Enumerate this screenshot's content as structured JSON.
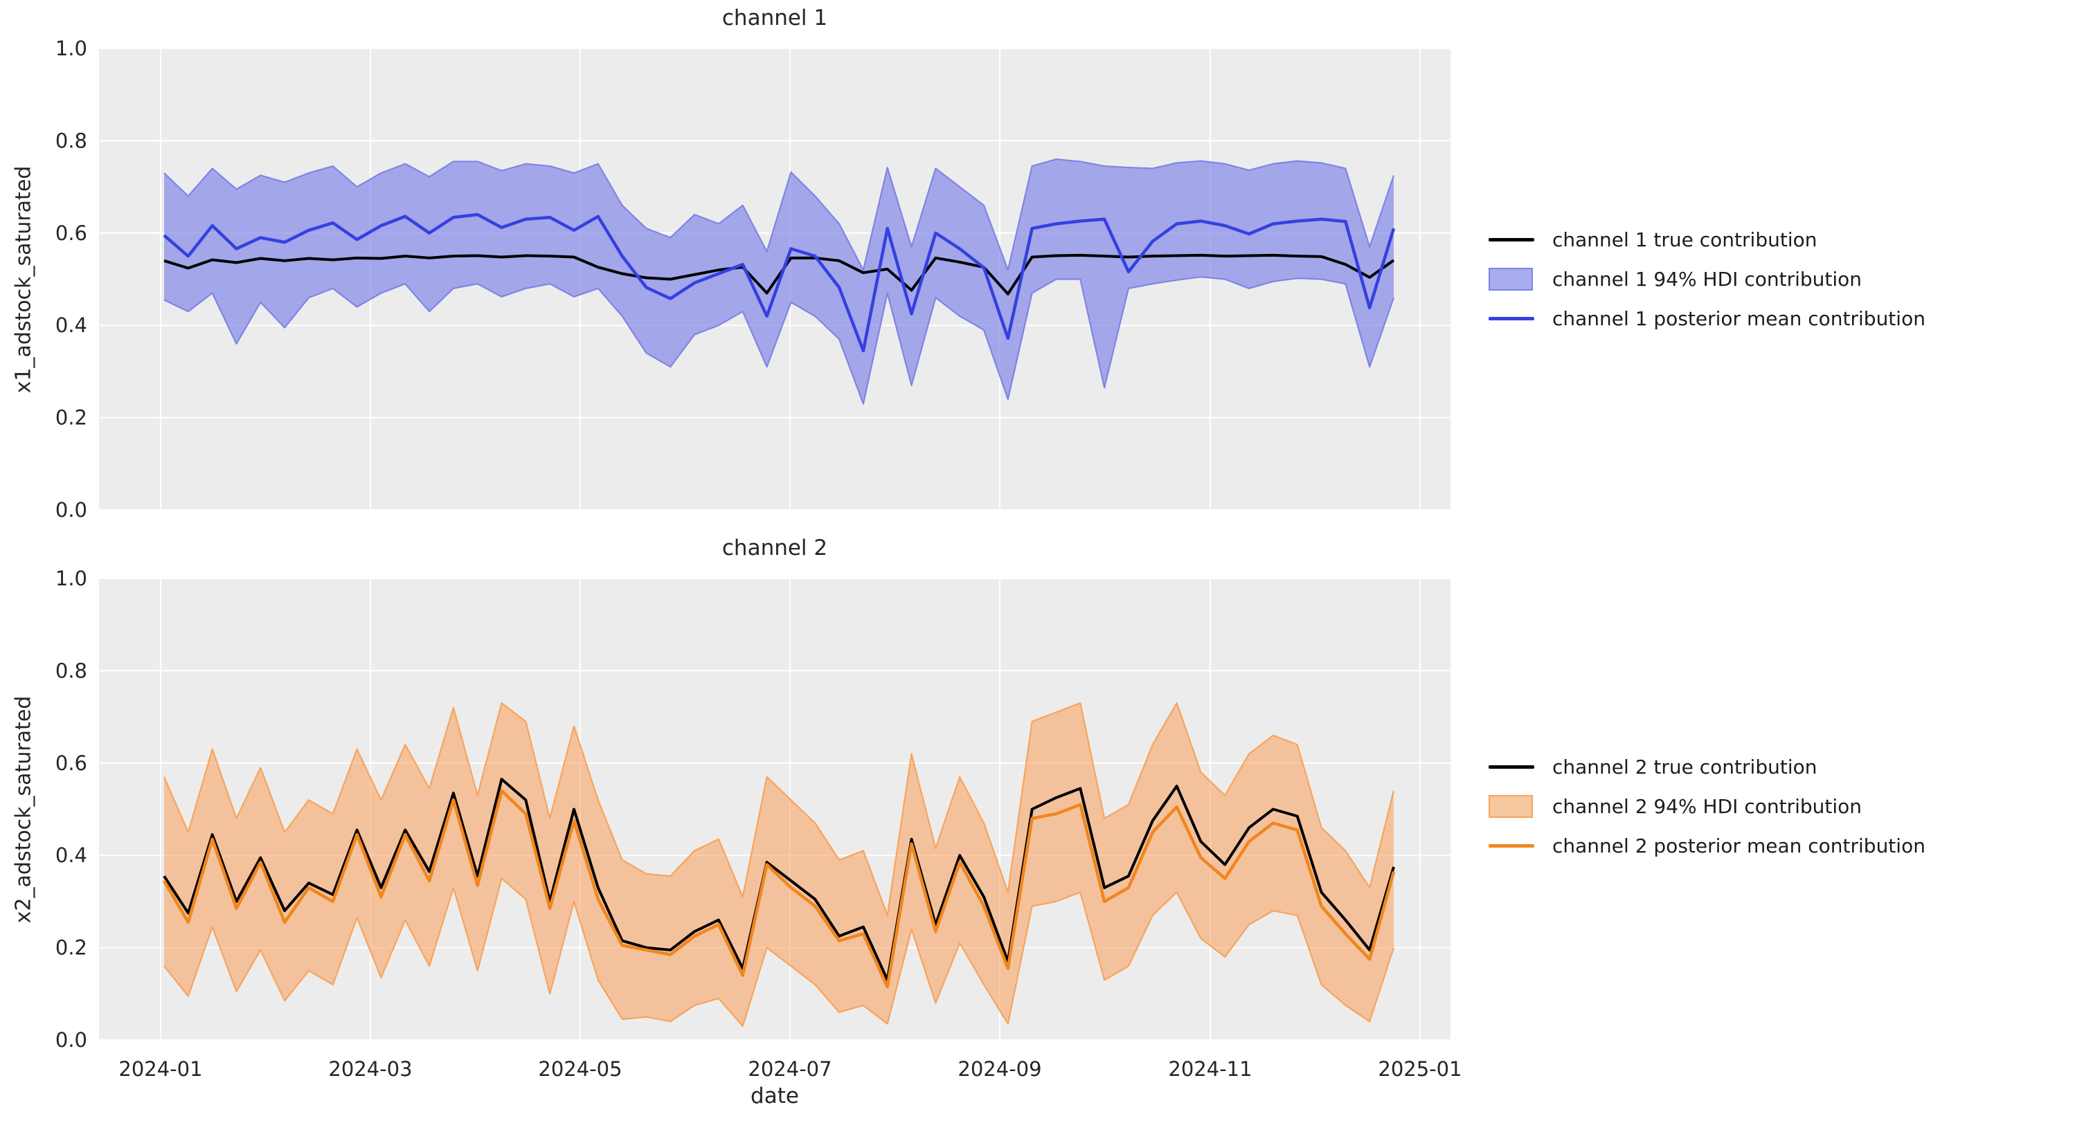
{
  "figure": {
    "background": "#ffffff",
    "axes_background": "#ececec",
    "grid_color": "#ffffff",
    "tick_color": "#262626"
  },
  "chart_data": [
    {
      "type": "line",
      "title": "channel 1",
      "xlabel": "",
      "ylabel": "x1_adstock_saturated",
      "ylim": [
        0.0,
        1.0
      ],
      "grid": true,
      "legend_position": "right-outside",
      "x_start": "2024-01-01",
      "x_step_days": 7,
      "n_points": 52,
      "x_tick_labels": [
        "2024-01",
        "2024-03",
        "2024-05",
        "2024-07",
        "2024-09",
        "2024-11",
        "2025-01"
      ],
      "y_ticks": [
        0.0,
        0.2,
        0.4,
        0.6,
        0.8,
        1.0
      ],
      "y_tick_labels": [
        "0.0",
        "0.2",
        "0.4",
        "0.6",
        "0.8",
        "1.0"
      ],
      "colors": {
        "true_line": "#000000",
        "mean_line": "#3440df",
        "band_fill": "#7c81e6",
        "band_alpha": 0.66,
        "band_edge": "#7f84e6",
        "band_swatch": "#a8abec"
      },
      "series": [
        {
          "name": "channel 1 true contribution",
          "role": "true",
          "values": [
            0.54,
            0.524,
            0.542,
            0.536,
            0.545,
            0.54,
            0.545,
            0.542,
            0.546,
            0.545,
            0.55,
            0.546,
            0.55,
            0.551,
            0.548,
            0.551,
            0.55,
            0.548,
            0.526,
            0.512,
            0.503,
            0.5,
            0.51,
            0.52,
            0.526,
            0.47,
            0.546,
            0.546,
            0.54,
            0.514,
            0.522,
            0.476,
            0.546,
            0.537,
            0.526,
            0.468,
            0.548,
            0.551,
            0.552,
            0.55,
            0.548,
            0.55,
            0.551,
            0.552,
            0.55,
            0.551,
            0.552,
            0.55,
            0.549,
            0.532,
            0.504,
            0.541
          ]
        },
        {
          "name": "channel 1 94% HDI contribution",
          "role": "band",
          "upper": [
            0.73,
            0.68,
            0.74,
            0.695,
            0.725,
            0.71,
            0.73,
            0.745,
            0.7,
            0.73,
            0.75,
            0.722,
            0.755,
            0.755,
            0.735,
            0.75,
            0.745,
            0.73,
            0.75,
            0.66,
            0.61,
            0.59,
            0.64,
            0.62,
            0.66,
            0.56,
            0.732,
            0.68,
            0.62,
            0.52,
            0.742,
            0.57,
            0.74,
            0.7,
            0.66,
            0.52,
            0.745,
            0.76,
            0.755,
            0.745,
            0.742,
            0.74,
            0.752,
            0.756,
            0.75,
            0.736,
            0.75,
            0.756,
            0.752,
            0.74,
            0.57,
            0.725
          ],
          "lower": [
            0.455,
            0.43,
            0.47,
            0.36,
            0.45,
            0.395,
            0.46,
            0.48,
            0.44,
            0.47,
            0.49,
            0.43,
            0.48,
            0.49,
            0.462,
            0.48,
            0.49,
            0.462,
            0.48,
            0.42,
            0.34,
            0.31,
            0.38,
            0.4,
            0.43,
            0.31,
            0.45,
            0.42,
            0.37,
            0.23,
            0.47,
            0.27,
            0.46,
            0.42,
            0.39,
            0.24,
            0.47,
            0.5,
            0.5,
            0.265,
            0.48,
            0.49,
            0.498,
            0.505,
            0.5,
            0.48,
            0.495,
            0.502,
            0.5,
            0.49,
            0.31,
            0.46
          ]
        },
        {
          "name": "channel 1 posterior mean contribution",
          "role": "mean",
          "values": [
            0.595,
            0.55,
            0.616,
            0.566,
            0.59,
            0.58,
            0.606,
            0.622,
            0.586,
            0.616,
            0.636,
            0.6,
            0.634,
            0.64,
            0.612,
            0.63,
            0.634,
            0.606,
            0.636,
            0.55,
            0.482,
            0.458,
            0.492,
            0.512,
            0.532,
            0.42,
            0.566,
            0.55,
            0.482,
            0.345,
            0.61,
            0.425,
            0.6,
            0.566,
            0.525,
            0.372,
            0.61,
            0.62,
            0.626,
            0.63,
            0.516,
            0.582,
            0.62,
            0.626,
            0.616,
            0.598,
            0.62,
            0.626,
            0.63,
            0.625,
            0.438,
            0.61
          ]
        }
      ]
    },
    {
      "type": "line",
      "title": "channel 2",
      "xlabel": "date",
      "ylabel": "x2_adstock_saturated",
      "ylim": [
        0.0,
        1.0
      ],
      "grid": true,
      "legend_position": "right-outside",
      "x_start": "2024-01-01",
      "x_step_days": 7,
      "n_points": 52,
      "x_tick_labels": [
        "2024-01",
        "2024-03",
        "2024-05",
        "2024-07",
        "2024-09",
        "2024-11",
        "2025-01"
      ],
      "y_ticks": [
        0.0,
        0.2,
        0.4,
        0.6,
        0.8,
        1.0
      ],
      "y_tick_labels": [
        "0.0",
        "0.2",
        "0.4",
        "0.6",
        "0.8",
        "1.0"
      ],
      "colors": {
        "true_line": "#000000",
        "mean_line": "#f1861d",
        "band_fill": "#fa984b",
        "band_alpha": 0.5,
        "band_edge": "#f7a45c",
        "band_swatch": "#f6c89e"
      },
      "series": [
        {
          "name": "channel 2 true contribution",
          "role": "true",
          "values": [
            0.355,
            0.275,
            0.445,
            0.3,
            0.395,
            0.28,
            0.34,
            0.315,
            0.455,
            0.33,
            0.455,
            0.365,
            0.535,
            0.355,
            0.565,
            0.52,
            0.3,
            0.5,
            0.33,
            0.215,
            0.2,
            0.195,
            0.235,
            0.26,
            0.155,
            0.385,
            0.345,
            0.305,
            0.225,
            0.245,
            0.13,
            0.435,
            0.25,
            0.4,
            0.31,
            0.17,
            0.5,
            0.525,
            0.545,
            0.33,
            0.355,
            0.475,
            0.55,
            0.43,
            0.38,
            0.46,
            0.5,
            0.485,
            0.32,
            0.26,
            0.195,
            0.375
          ]
        },
        {
          "name": "channel 2 94% HDI contribution",
          "role": "band",
          "upper": [
            0.57,
            0.45,
            0.63,
            0.48,
            0.59,
            0.45,
            0.52,
            0.49,
            0.63,
            0.52,
            0.64,
            0.545,
            0.72,
            0.53,
            0.73,
            0.69,
            0.48,
            0.68,
            0.52,
            0.39,
            0.36,
            0.355,
            0.41,
            0.435,
            0.31,
            0.57,
            0.52,
            0.47,
            0.39,
            0.41,
            0.27,
            0.62,
            0.415,
            0.57,
            0.47,
            0.32,
            0.69,
            0.71,
            0.73,
            0.48,
            0.51,
            0.64,
            0.73,
            0.58,
            0.53,
            0.62,
            0.66,
            0.64,
            0.46,
            0.41,
            0.33,
            0.54
          ],
          "lower": [
            0.16,
            0.095,
            0.245,
            0.105,
            0.195,
            0.085,
            0.15,
            0.12,
            0.265,
            0.135,
            0.26,
            0.16,
            0.33,
            0.15,
            0.35,
            0.305,
            0.1,
            0.3,
            0.13,
            0.045,
            0.05,
            0.04,
            0.075,
            0.09,
            0.03,
            0.2,
            0.16,
            0.12,
            0.06,
            0.075,
            0.035,
            0.24,
            0.08,
            0.21,
            0.12,
            0.035,
            0.29,
            0.3,
            0.32,
            0.13,
            0.16,
            0.27,
            0.32,
            0.22,
            0.18,
            0.25,
            0.28,
            0.27,
            0.12,
            0.075,
            0.04,
            0.2
          ]
        },
        {
          "name": "channel 2 posterior mean contribution",
          "role": "mean",
          "values": [
            0.345,
            0.255,
            0.435,
            0.285,
            0.385,
            0.255,
            0.33,
            0.3,
            0.445,
            0.31,
            0.445,
            0.345,
            0.52,
            0.335,
            0.54,
            0.49,
            0.285,
            0.475,
            0.305,
            0.205,
            0.195,
            0.185,
            0.225,
            0.25,
            0.14,
            0.38,
            0.33,
            0.29,
            0.215,
            0.23,
            0.115,
            0.425,
            0.235,
            0.385,
            0.29,
            0.155,
            0.48,
            0.49,
            0.51,
            0.3,
            0.33,
            0.45,
            0.505,
            0.395,
            0.35,
            0.43,
            0.47,
            0.455,
            0.29,
            0.23,
            0.175,
            0.365
          ]
        }
      ]
    }
  ]
}
